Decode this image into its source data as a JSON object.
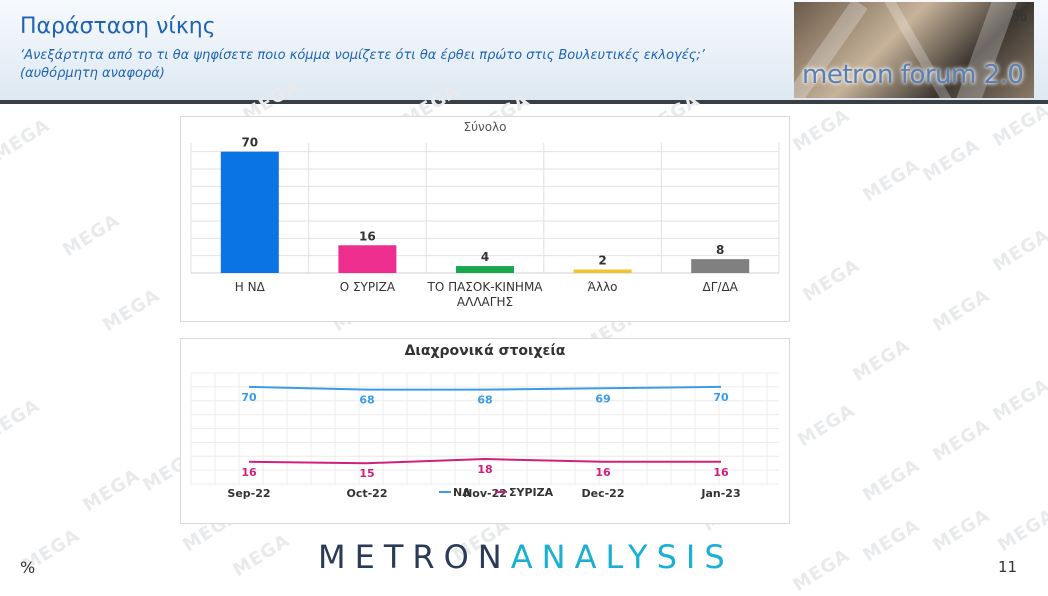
{
  "header": {
    "title": "Παράσταση νίκης",
    "subtitle": "‘Ανεξάρτητα από το τι θα ψηφίσετε ποιο κόμμα νομίζετε ότι θα έρθει πρώτο στις Βουλευτικές εκλογές;’",
    "subtitle_note": "(αυθόρμητη αναφορά)",
    "percent_label": "%",
    "logo_text": "metron forum 2.0"
  },
  "watermark_text": "MEGA",
  "footer": {
    "logo_part1": "METRON",
    "logo_part2": "ANALYSIS",
    "percent_label": "%",
    "page_number": "11"
  },
  "colors": {
    "title": "#1f64b4",
    "nd": "#0b74e5",
    "syriza": "#ee2e8e",
    "pasok": "#1aa84e",
    "allo": "#f4c22c",
    "dgda": "#808080",
    "line_nd": "#3c9be8",
    "line_syriza": "#d0207e"
  },
  "chart_data": [
    {
      "type": "bar",
      "title": "Σύνολο",
      "categories": [
        "Η ΝΔ",
        "Ο ΣΥΡΙΖΑ",
        "ΤΟ ΠΑΣΟΚ-ΚΙΝΗΜΑ ΑΛΛΑΓΗΣ",
        "Άλλο",
        "ΔΓ/ΔΑ"
      ],
      "category_lines": [
        [
          "Η ΝΔ"
        ],
        [
          "Ο ΣΥΡΙΖΑ"
        ],
        [
          "ΤΟ ΠΑΣΟΚ-ΚΙΝΗΜΑ",
          "ΑΛΛΑΓΗΣ"
        ],
        [
          "Άλλο"
        ],
        [
          "ΔΓ/ΔΑ"
        ]
      ],
      "values": [
        70,
        16,
        4,
        2,
        8
      ],
      "bar_colors": [
        "#0b74e5",
        "#ee2e8e",
        "#1aa84e",
        "#f4c22c",
        "#808080"
      ],
      "ylim": [
        0,
        75
      ],
      "grid": true,
      "legend": "none"
    },
    {
      "type": "line",
      "title": "Διαχρονικά στοιχεία",
      "categories": [
        "Sep-22",
        "Oct-22",
        "Nov-22",
        "Dec-22",
        "Jan-23"
      ],
      "series": [
        {
          "name": "ΝΔ",
          "values": [
            70,
            68,
            68,
            69,
            70
          ],
          "color": "#3c9be8"
        },
        {
          "name": "ΣΥΡΙΖΑ",
          "values": [
            16,
            15,
            18,
            16,
            16
          ],
          "color": "#d0207e"
        }
      ],
      "ylim": [
        0,
        80
      ],
      "grid": true,
      "legend": "bottom"
    }
  ]
}
